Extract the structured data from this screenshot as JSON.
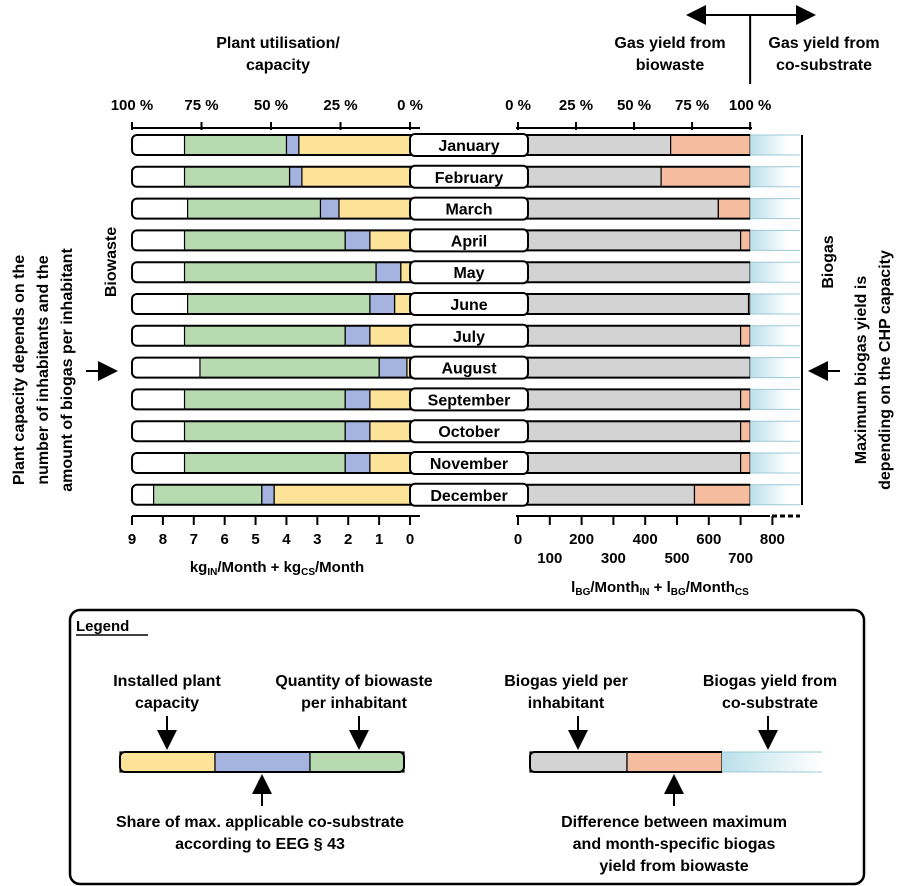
{
  "chart_data": {
    "type": "bar",
    "categories": [
      "January",
      "February",
      "March",
      "April",
      "May",
      "June",
      "July",
      "August",
      "September",
      "October",
      "November",
      "December"
    ],
    "left": {
      "header": [
        "Plant utilisation/",
        "capacity"
      ],
      "pct_ticks": [
        "100 %",
        "75 %",
        "50 %",
        "25 %",
        "0 %"
      ],
      "value_ticks": [
        "9",
        "8",
        "7",
        "6",
        "5",
        "4",
        "3",
        "2",
        "1",
        "0"
      ],
      "xmax": 9,
      "axis_label": {
        "main": "kg",
        "sub1": "IN",
        "mid": "/Month + kg",
        "sub2": "CS",
        "end": "/Month"
      },
      "side_label": "Biowaste",
      "outer_label": [
        "Plant capacity depends on the",
        "number of inhabitants and the",
        "amount of biogas per inhabitant"
      ],
      "series": [
        {
          "name": "Installed plant capacity",
          "color": "#fde398",
          "values": [
            3.6,
            3.5,
            2.3,
            1.3,
            0.3,
            0.5,
            1.3,
            0.1,
            1.3,
            1.3,
            1.3,
            4.4
          ]
        },
        {
          "name": "Share of max. applicable co-substrate according to EEG § 43",
          "color": "#a4b3e0",
          "values": [
            0.4,
            0.4,
            0.6,
            0.8,
            0.8,
            0.8,
            0.8,
            0.9,
            0.8,
            0.8,
            0.8,
            0.4
          ]
        },
        {
          "name": "Quantity of biowaste per inhabitant",
          "color": "#b7dab1",
          "values": [
            3.3,
            3.4,
            4.3,
            5.2,
            6.2,
            5.9,
            5.2,
            5.8,
            5.2,
            5.2,
            5.2,
            3.5
          ]
        }
      ]
    },
    "right": {
      "header_left": [
        "Gas yield from",
        "biowaste"
      ],
      "header_right": [
        "Gas yield from",
        "co-substrate"
      ],
      "pct_ticks": [
        "0 %",
        "25 %",
        "50 %",
        "75 %",
        "100 %"
      ],
      "upper_ticks": [
        "0",
        "200",
        "400",
        "600",
        "800"
      ],
      "lower_ticks": [
        "100",
        "300",
        "500",
        "700"
      ],
      "xmax": 850,
      "max_yield": 730,
      "axis_label": {
        "main": "l",
        "sub1": "BG",
        "mid": "/Month",
        "sub2": "IN",
        "mid2": " + l",
        "sub3": "BG",
        "mid3": "/Month",
        "sub4": "CS"
      },
      "side_label": "Biogas",
      "outer_label": [
        "Maximum biogas yield is",
        "depending on the CHP capacity"
      ],
      "series": [
        {
          "name": "Biogas yield per inhabitant",
          "color": "#d3d3d3",
          "values": [
            480,
            450,
            630,
            700,
            730,
            725,
            700,
            730,
            700,
            700,
            700,
            555
          ]
        },
        {
          "name": "Difference between maximum and month-specific biogas yield from biowaste",
          "color": "#f6bca0",
          "values": [
            250,
            280,
            100,
            30,
            0,
            5,
            30,
            0,
            30,
            30,
            30,
            175
          ]
        },
        {
          "name": "Biogas yield from co-substrate",
          "color": "#b9e0ea",
          "values": [
            120,
            120,
            120,
            120,
            120,
            120,
            120,
            120,
            120,
            120,
            120,
            120
          ]
        }
      ]
    },
    "legend": {
      "title": "Legend",
      "left_top": [
        [
          "Installed plant",
          "capacity"
        ],
        [
          "Quantity of biowaste",
          "per inhabitant"
        ]
      ],
      "left_bottom": [
        "Share of max. applicable co-substrate",
        "according to EEG § 43"
      ],
      "right_top": [
        [
          "Biogas yield per",
          "inhabitant"
        ],
        [
          "Biogas yield from",
          "co-substrate"
        ]
      ],
      "right_bottom": [
        "Difference between maximum",
        "and month-specific biogas",
        "yield from biowaste"
      ]
    }
  }
}
